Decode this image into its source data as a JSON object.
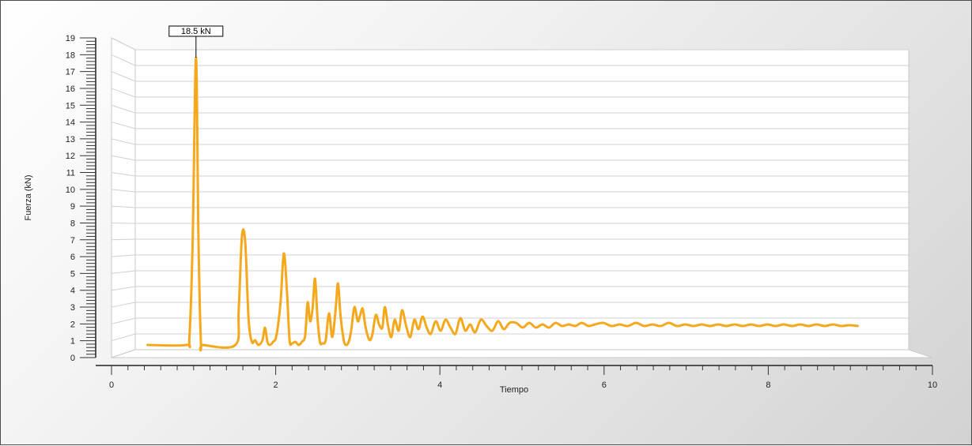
{
  "chart_data": {
    "type": "line",
    "title": "",
    "xlabel": "Tiempo",
    "ylabel": "Fuerza (kN)",
    "xlim": [
      0,
      10
    ],
    "ylim": [
      0,
      19
    ],
    "x_ticks": [
      0,
      2,
      4,
      6,
      8,
      10
    ],
    "y_ticks": [
      0,
      1,
      2,
      3,
      4,
      5,
      6,
      7,
      8,
      9,
      10,
      11,
      12,
      13,
      14,
      15,
      16,
      17,
      18,
      19
    ],
    "grid": true,
    "legend": "none",
    "series_color": "#F5A81C",
    "peak_label": {
      "text": "18.5 kN",
      "x": 0.74,
      "y": 18.5
    },
    "series": [
      {
        "x": [
          0.15,
          0.62,
          0.66,
          0.7,
          0.74,
          0.77,
          0.8,
          0.83,
          1.22,
          1.26,
          1.3,
          1.34,
          1.38,
          1.42,
          1.46,
          1.5,
          1.55,
          1.58,
          1.61,
          1.64,
          1.68,
          1.72,
          1.77,
          1.81,
          1.85,
          1.88,
          1.91,
          1.95,
          1.99,
          2.03,
          2.07,
          2.1,
          2.13,
          2.16,
          2.19,
          2.22,
          2.25,
          2.28,
          2.32,
          2.36,
          2.4,
          2.44,
          2.47,
          2.5,
          2.54,
          2.57,
          2.6,
          2.63,
          2.67,
          2.71,
          2.74,
          2.77,
          2.8,
          2.83,
          2.86,
          2.89,
          2.93,
          2.97,
          3.01,
          3.04,
          3.08,
          3.12,
          3.16,
          3.21,
          3.25,
          3.3,
          3.35,
          3.4,
          3.45,
          3.5,
          3.55,
          3.6,
          3.66,
          3.72,
          3.78,
          3.84,
          3.9,
          3.96,
          4.02,
          4.08,
          4.14,
          4.21,
          4.28,
          4.35,
          4.42,
          4.49,
          4.56,
          4.64,
          4.72,
          4.8,
          4.88,
          4.96,
          5.04,
          5.12,
          5.2,
          5.28,
          5.36,
          5.44,
          5.52,
          5.6,
          5.7,
          5.8,
          5.9,
          6.0,
          6.1,
          6.2,
          6.3,
          6.4,
          6.5,
          6.6,
          6.7,
          6.8,
          6.9,
          7.0,
          7.1,
          7.2,
          7.3,
          7.4,
          7.5,
          7.6,
          7.7,
          7.8,
          7.9,
          8.0,
          8.1,
          8.2,
          8.3,
          8.4,
          8.5,
          8.6,
          8.7,
          8.8
        ],
        "y": [
          0.3,
          0.3,
          0.8,
          7.0,
          18.5,
          7.0,
          0.5,
          0.3,
          0.3,
          2.5,
          7.2,
          6.8,
          2.0,
          0.5,
          0.6,
          0.3,
          0.6,
          1.4,
          0.5,
          0.3,
          0.5,
          0.9,
          3.0,
          6.1,
          3.5,
          0.6,
          0.4,
          0.5,
          0.3,
          0.5,
          0.9,
          3.0,
          1.8,
          2.6,
          4.5,
          2.0,
          0.5,
          0.4,
          0.6,
          2.3,
          0.8,
          2.5,
          4.2,
          2.2,
          0.6,
          0.3,
          0.5,
          1.2,
          2.7,
          1.8,
          2.2,
          2.6,
          1.6,
          0.9,
          0.6,
          1.0,
          2.2,
          1.6,
          1.4,
          2.7,
          1.5,
          0.8,
          1.9,
          1.2,
          2.5,
          1.5,
          0.8,
          1.9,
          1.3,
          2.1,
          1.4,
          1.0,
          1.8,
          1.2,
          1.9,
          1.4,
          1.0,
          2.0,
          1.2,
          1.6,
          1.1,
          1.9,
          1.5,
          1.2,
          1.8,
          1.3,
          1.7,
          1.7,
          1.4,
          1.7,
          1.4,
          1.6,
          1.4,
          1.7,
          1.5,
          1.6,
          1.5,
          1.7,
          1.5,
          1.6,
          1.7,
          1.5,
          1.6,
          1.5,
          1.7,
          1.5,
          1.6,
          1.5,
          1.7,
          1.5,
          1.6,
          1.5,
          1.6,
          1.5,
          1.6,
          1.5,
          1.6,
          1.5,
          1.6,
          1.5,
          1.6,
          1.5,
          1.6,
          1.5,
          1.6,
          1.5,
          1.6,
          1.5,
          1.6,
          1.5,
          1.55,
          1.5
        ]
      }
    ]
  }
}
